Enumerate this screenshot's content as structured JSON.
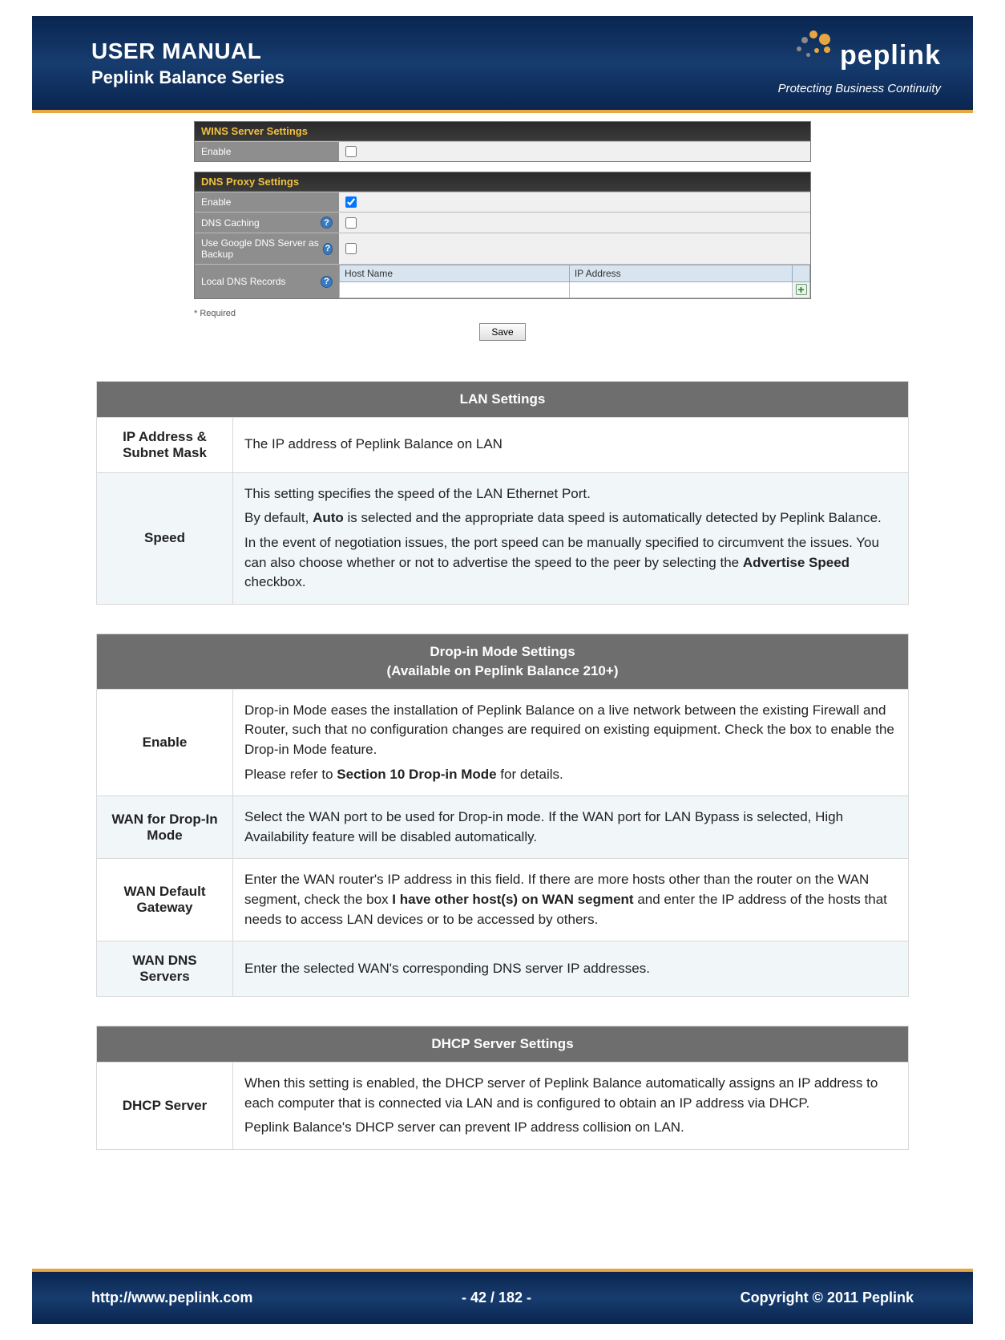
{
  "header": {
    "title": "USER MANUAL",
    "subtitle": "Peplink Balance Series",
    "logo_text": "peplink",
    "logo_tagline": "Protecting Business Continuity",
    "accent_color": "#e6a642",
    "bg_color": "#0a2550"
  },
  "footer": {
    "url": "http://www.peplink.com",
    "page": "- 42 / 182 -",
    "copyright": "Copyright © 2011 Peplink"
  },
  "config": {
    "wins": {
      "title": "WINS Server Settings",
      "rows": [
        {
          "label": "Enable",
          "help": false,
          "checked": false
        }
      ]
    },
    "dns": {
      "title": "DNS Proxy Settings",
      "rows": [
        {
          "label": "Enable",
          "help": false,
          "checked": true
        },
        {
          "label": "DNS Caching",
          "help": true,
          "checked": false
        },
        {
          "label": "Use Google DNS Server as Backup",
          "help": true,
          "checked": false
        }
      ],
      "records_label": "Local DNS Records",
      "records_help": true,
      "records_headers": [
        "Host Name",
        "IP Address"
      ]
    },
    "required_note": "*   Required",
    "save_label": "Save"
  },
  "tables": {
    "lan": {
      "title": "LAN Settings",
      "rows": [
        {
          "label": "IP Address & Subnet Mask",
          "paras": [
            "The IP address of Peplink Balance on LAN"
          ]
        },
        {
          "label": "Speed",
          "paras": [
            "This setting specifies the speed of the LAN Ethernet Port.",
            "By default, <b>Auto</b> is selected and the appropriate data speed is automatically detected by Peplink Balance.",
            "In the event of negotiation issues, the port speed can be manually specified to circumvent the issues.  You can also choose whether or not to advertise the speed to the peer by selecting the <b>Advertise Speed</b> checkbox."
          ]
        }
      ]
    },
    "dropin": {
      "title": "Drop-in Mode Settings",
      "subtitle": "(Available on Peplink Balance 210+)",
      "rows": [
        {
          "label": "Enable",
          "paras": [
            "Drop-in Mode eases the installation of Peplink Balance on a live network between the existing Firewall and Router, such that no configuration changes are required on existing equipment. Check the box to enable the Drop-in Mode feature.",
            "Please refer to <b>Section 10 Drop-in Mode</b> for details."
          ]
        },
        {
          "label": "WAN for Drop-In Mode",
          "paras": [
            "Select the WAN port to be used for Drop-in mode. If the WAN port for LAN Bypass is selected, High Availability feature will be disabled automatically."
          ]
        },
        {
          "label": "WAN Default Gateway",
          "paras": [
            "Enter the WAN router's IP address in this field. If there are more hosts other than the router on the WAN segment, check the box <b>I have other host(s) on WAN segment</b> and enter the IP address of the hosts that needs to access LAN devices or to be accessed by others."
          ]
        },
        {
          "label": "WAN DNS Servers",
          "paras": [
            "Enter the selected WAN's corresponding DNS server IP addresses."
          ]
        }
      ]
    },
    "dhcp": {
      "title": "DHCP Server Settings",
      "rows": [
        {
          "label": "DHCP Server",
          "paras": [
            "When this setting is enabled, the DHCP server of Peplink Balance automatically assigns an IP address to each computer that is connected via LAN and is configured to obtain an IP address via DHCP.",
            "Peplink Balance's DHCP server can prevent IP address collision on LAN."
          ]
        }
      ]
    }
  }
}
